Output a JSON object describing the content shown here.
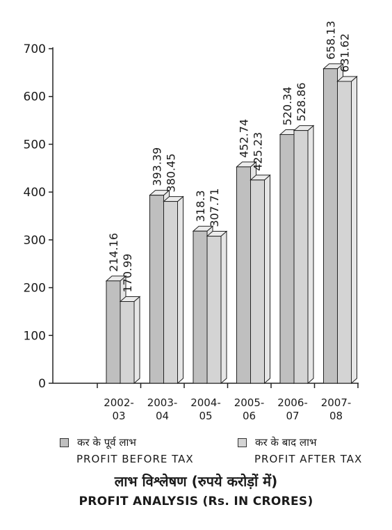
{
  "chart_data": {
    "type": "bar",
    "categories": [
      "2002-03",
      "2003-04",
      "2004-05",
      "2005-06",
      "2006-07",
      "2007-08"
    ],
    "category_lines": [
      [
        "2002-",
        "03"
      ],
      [
        "2003-",
        "04"
      ],
      [
        "2004-",
        "05"
      ],
      [
        "2005-",
        "06"
      ],
      [
        "2006-",
        "07"
      ],
      [
        "2007-",
        "08"
      ]
    ],
    "series": [
      {
        "name": "कर के पूर्व लाभ / PROFIT BEFORE TAX",
        "values": [
          214.16,
          393.39,
          318.3,
          452.74,
          520.34,
          658.13
        ]
      },
      {
        "name": "कर के बाद लाभ / PROFIT AFTER TAX",
        "values": [
          170.99,
          380.45,
          307.71,
          425.23,
          528.86,
          631.62
        ]
      }
    ],
    "value_labels": [
      [
        "214.16",
        "393.39",
        "318.3",
        "452.74",
        "520.34",
        "658.13"
      ],
      [
        "170.99",
        "380.45",
        "307.71",
        "425.23",
        "528.86",
        "631.62"
      ]
    ],
    "ylim": [
      0,
      700
    ],
    "yticks": [
      "0",
      "100",
      "200",
      "300",
      "400",
      "500",
      "600",
      "700"
    ],
    "grid": false,
    "three_d": true,
    "legend_position": "bottom",
    "colors": {
      "before_tax": "#bfbfbf",
      "after_tax": "#d4d4d4",
      "outline": "#222222"
    }
  },
  "legend": {
    "before_tax_hi": "कर के पूर्व लाभ",
    "before_tax_en": "PROFIT BEFORE TAX",
    "after_tax_hi": "कर के बाद लाभ",
    "after_tax_en": "PROFIT AFTER TAX"
  },
  "title": {
    "hindi": "लाभ विश्लेषण (रुपये करोड़ों में)",
    "english": "PROFIT ANALYSIS (Rs. IN CRORES)"
  }
}
